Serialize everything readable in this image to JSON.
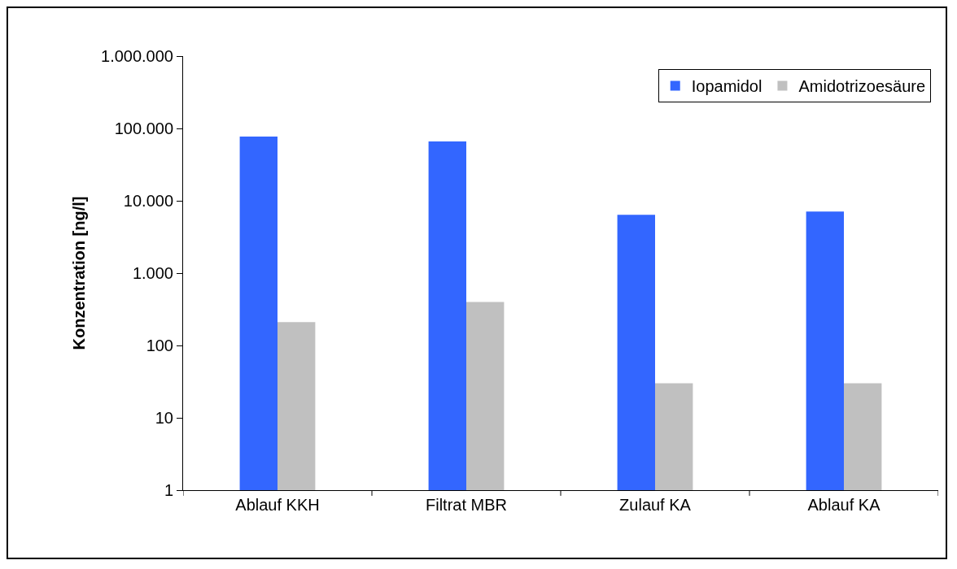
{
  "chart_data": {
    "type": "bar",
    "ylabel": "Konzentration [ng/l]",
    "categories": [
      "Ablauf KKH",
      "Filtrat MBR",
      "Zulauf KA",
      "Ablauf KA"
    ],
    "series": [
      {
        "name": "Iopamidol",
        "color": "#3366ff",
        "values": [
          77000,
          66000,
          6400,
          7100
        ]
      },
      {
        "name": "Amidotrizoesäure",
        "color": "#c0c0c0",
        "values": [
          210,
          400,
          30,
          30
        ]
      }
    ],
    "log": true,
    "ylim": [
      1,
      1000000
    ],
    "yticks": [
      1,
      10,
      100,
      {
        "value": 1000,
        "label": "1.000"
      },
      {
        "value": 10000,
        "label": "10.000"
      },
      {
        "value": 100000,
        "label": "100.000"
      },
      {
        "value": 1000000,
        "label": "1.000.000"
      }
    ],
    "grid": false,
    "legend": "top right"
  }
}
